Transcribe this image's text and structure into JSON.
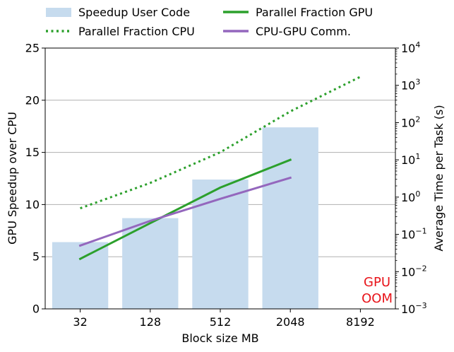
{
  "chart_data": {
    "type": "bar",
    "categories": [
      "32",
      "128",
      "512",
      "2048",
      "8192"
    ],
    "xlabel": "Block size MB",
    "ylabel": "GPU Speedup over CPU",
    "y2label": "Average Time per Task (s)",
    "ylim": [
      0,
      25
    ],
    "y2lim": [
      0.001,
      10000
    ],
    "y2scale": "log",
    "y_ticks": [
      "0",
      "5",
      "10",
      "15",
      "20",
      "25"
    ],
    "y2_ticks": [
      {
        "base": "10",
        "exp": "−3",
        "value": 0.001
      },
      {
        "base": "10",
        "exp": "−2",
        "value": 0.01
      },
      {
        "base": "10",
        "exp": "−1",
        "value": 0.1
      },
      {
        "base": "10",
        "exp": "0",
        "value": 1
      },
      {
        "base": "10",
        "exp": "1",
        "value": 10
      },
      {
        "base": "10",
        "exp": "2",
        "value": 100
      },
      {
        "base": "10",
        "exp": "3",
        "value": 1000
      },
      {
        "base": "10",
        "exp": "4",
        "value": 10000
      }
    ],
    "grid": "horizontal",
    "legend_position": "top",
    "bars": {
      "name": "Speedup User Code",
      "axis": "left",
      "color": "#c6dbee",
      "values": [
        6.4,
        8.7,
        12.4,
        17.4,
        null
      ]
    },
    "series": [
      {
        "name": "Parallel Fraction CPU",
        "axis": "right",
        "style": "dotted",
        "color": "#2ca02c",
        "values": [
          0.5,
          2.4,
          16,
          200,
          1700
        ]
      },
      {
        "name": "Parallel Fraction GPU",
        "axis": "right",
        "style": "solid",
        "color": "#2ca02c",
        "values": [
          0.022,
          0.2,
          1.8,
          10,
          null
        ]
      },
      {
        "name": "CPU-GPU Comm.",
        "axis": "right",
        "style": "solid",
        "color": "#9467bd",
        "values": [
          0.05,
          0.23,
          0.9,
          3.3,
          null
        ]
      }
    ],
    "annotation": {
      "lines": [
        "GPU",
        "OOM"
      ],
      "color": "#e8141a"
    }
  }
}
